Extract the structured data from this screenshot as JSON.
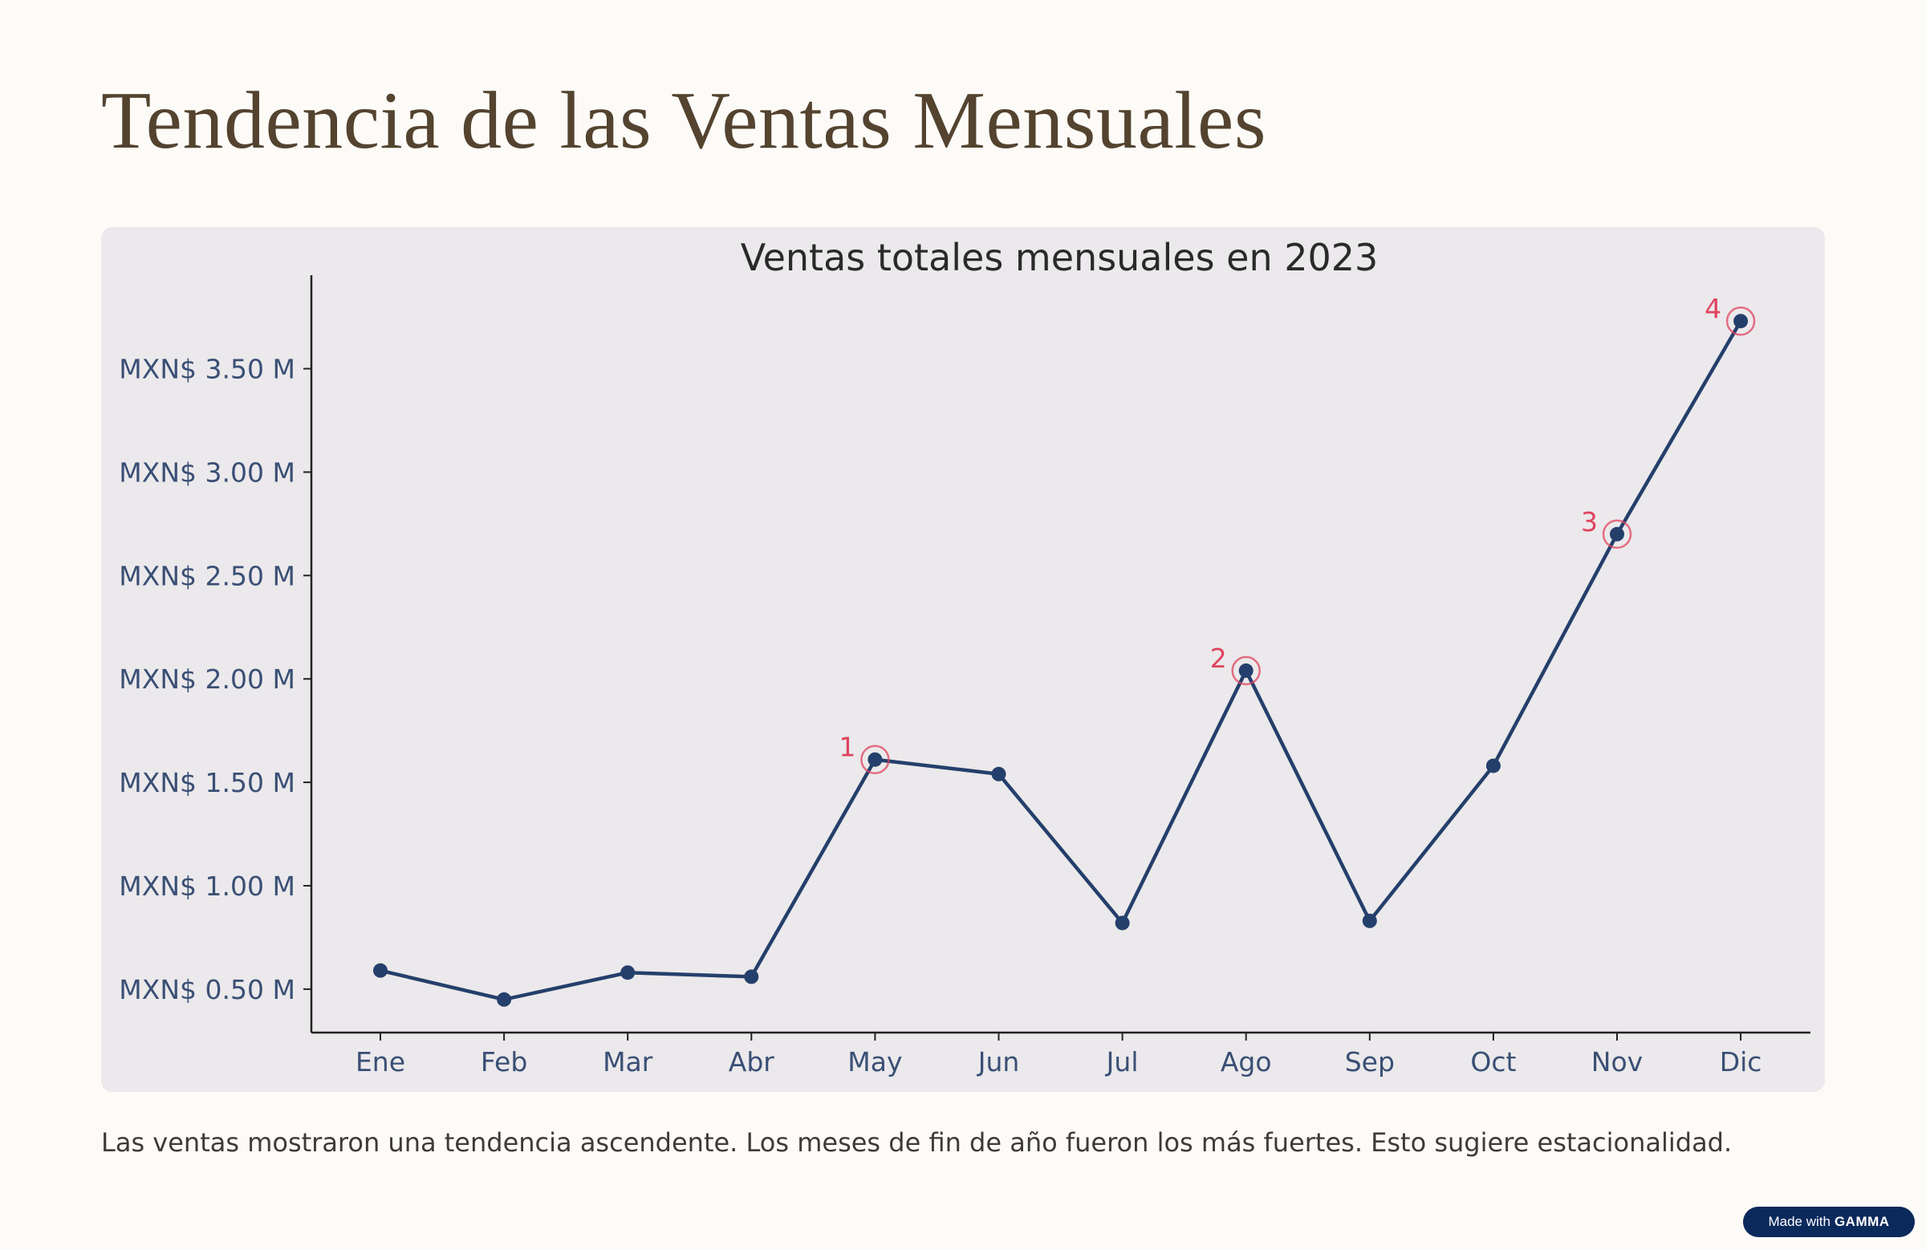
{
  "page": {
    "title": "Tendencia de las Ventas Mensuales",
    "caption": "Las ventas mostraron una tendencia ascendente. Los meses de fin de año fueron los más fuertes. Esto sugiere estacionalidad.",
    "badge_prefix": "Made with",
    "badge_brand": "GAMMA"
  },
  "colors": {
    "line": "#243f6b",
    "highlight": "#e0435f",
    "tick_text": "#3a4f75",
    "title_text": "#2a2a2a"
  },
  "chart_data": {
    "type": "line",
    "title": "Ventas totales mensuales en 2023",
    "xlabel": "",
    "ylabel": "",
    "categories": [
      "Ene",
      "Feb",
      "Mar",
      "Abr",
      "May",
      "Jun",
      "Jul",
      "Ago",
      "Sep",
      "Oct",
      "Nov",
      "Dic"
    ],
    "series": [
      {
        "values": [
          0.59,
          0.45,
          0.58,
          0.56,
          1.61,
          1.54,
          0.82,
          2.04,
          0.83,
          1.58,
          2.7,
          3.73
        ]
      }
    ],
    "ylim": [
      0.29,
      3.89
    ],
    "yticks": [
      0.5,
      1.0,
      1.5,
      2.0,
      2.5,
      3.0,
      3.5
    ],
    "ytick_labels": [
      "MXN$ 0.50 M",
      "MXN$ 1.00 M",
      "MXN$ 1.50 M",
      "MXN$ 2.00 M",
      "MXN$ 2.50 M",
      "MXN$ 3.00 M",
      "MXN$ 3.50 M"
    ],
    "annotations": [
      {
        "label": "1",
        "category": "May"
      },
      {
        "label": "2",
        "category": "Ago"
      },
      {
        "label": "3",
        "category": "Nov"
      },
      {
        "label": "4",
        "category": "Dic"
      }
    ],
    "grid": false,
    "legend": "none"
  }
}
